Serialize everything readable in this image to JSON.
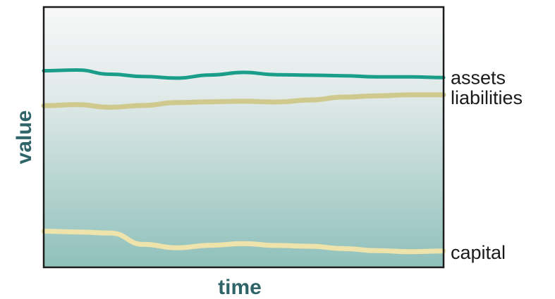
{
  "chart_data": {
    "type": "line",
    "xlabel": "time",
    "ylabel": "value",
    "grid": false,
    "legend": "direct labels at right end of each line",
    "x": [
      0,
      1,
      2,
      3,
      4,
      5,
      6,
      7,
      8,
      9,
      10,
      11,
      12
    ],
    "ylim": [
      0,
      100
    ],
    "series": [
      {
        "name": "assets",
        "color": "#1a9e8a",
        "values": [
          75.5,
          75.8,
          74.2,
          73.3,
          72.7,
          73.9,
          74.9,
          74.0,
          73.8,
          73.6,
          73.2,
          73.2,
          72.9
        ]
      },
      {
        "name": "liabilities",
        "color": "#cfc98e",
        "values": [
          62.1,
          62.5,
          61.5,
          62.2,
          63.3,
          63.6,
          63.8,
          63.5,
          64.3,
          65.4,
          65.9,
          66.3,
          66.3
        ]
      },
      {
        "name": "capital",
        "color": "#eee3aa",
        "values": [
          13.9,
          13.6,
          13.2,
          8.8,
          7.5,
          8.5,
          9.1,
          8.4,
          8.1,
          7.2,
          6.4,
          6.0,
          6.3
        ]
      }
    ]
  }
}
